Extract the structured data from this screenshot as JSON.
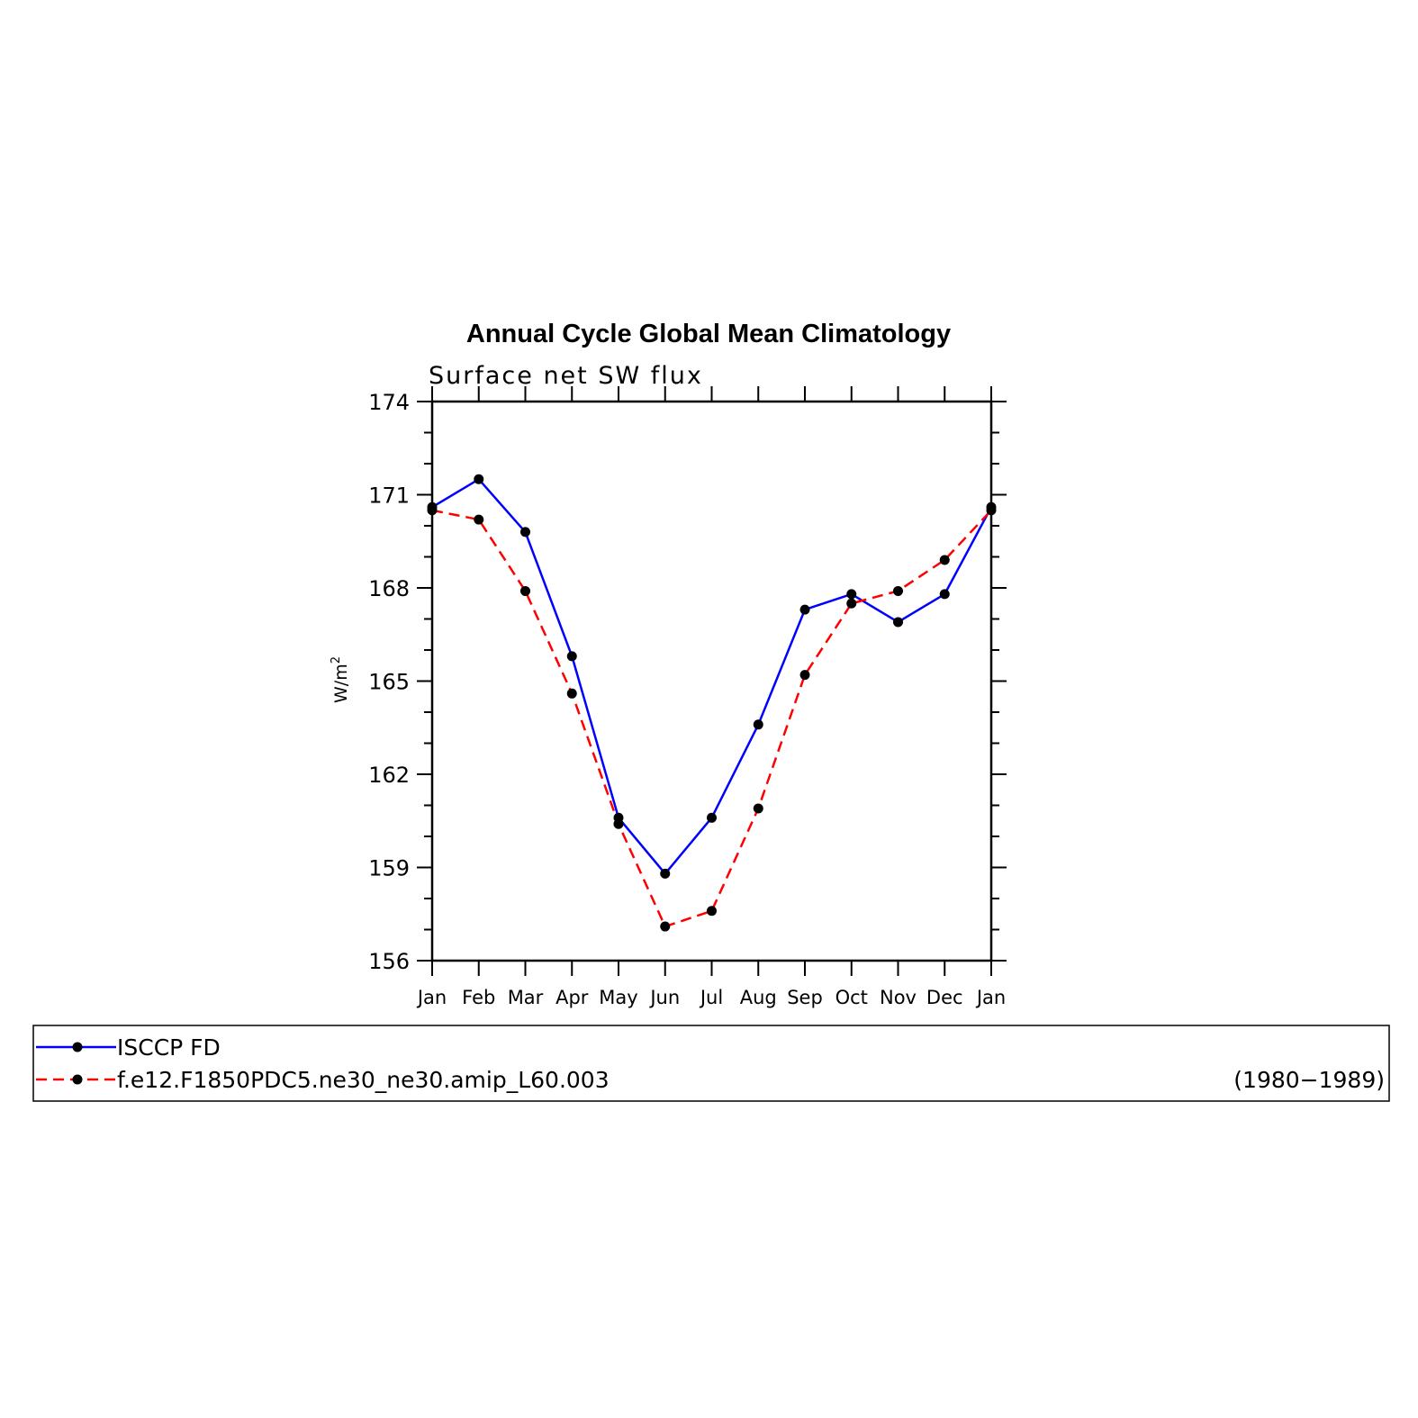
{
  "chart_data": {
    "type": "line",
    "title": "Annual Cycle Global Mean Climatology",
    "subtitle": "Surface net SW flux",
    "ylabel": "W/m",
    "ylabel_superscript": "2",
    "xlabel": "",
    "ylim": [
      156,
      174
    ],
    "yticks": [
      "156",
      "159",
      "162",
      "165",
      "168",
      "171",
      "174"
    ],
    "categories": [
      "Jan",
      "Feb",
      "Mar",
      "Apr",
      "May",
      "Jun",
      "Jul",
      "Aug",
      "Sep",
      "Oct",
      "Nov",
      "Dec",
      "Jan"
    ],
    "grid": false,
    "legend_position": "bottom",
    "series": [
      {
        "name": "ISCCP FD",
        "color": "#0000ff",
        "line_style": "solid",
        "marker": "filled-circle",
        "values": [
          170.6,
          171.5,
          169.8,
          165.8,
          160.6,
          158.8,
          160.6,
          163.6,
          167.3,
          167.8,
          166.9,
          167.8,
          170.6
        ]
      },
      {
        "name": "f.e12.F1850PDC5.ne30_ne30.amip_L60.003",
        "period": "(1980−1989)",
        "color": "#ff0000",
        "line_style": "dashed",
        "marker": "filled-circle",
        "values": [
          170.5,
          170.2,
          167.9,
          164.6,
          160.4,
          157.1,
          157.6,
          160.9,
          165.2,
          167.5,
          167.9,
          168.9,
          170.5
        ]
      }
    ]
  }
}
